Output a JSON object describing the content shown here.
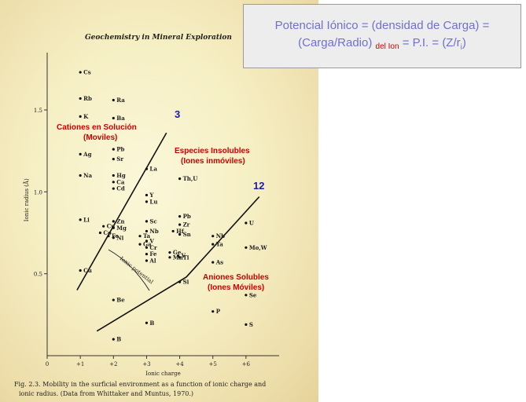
{
  "formula_box": {
    "line1": "Potencial Iónico = (densidad de Carga) =",
    "line2_a": "(Carga/Radio)",
    "line2_sub": "del Ion",
    "line2_b": "= P.I. = (Z/r",
    "line2_isub": "i",
    "line2_c": ")"
  },
  "book_header": "Geochemistry in Mineral Exploration",
  "caption": {
    "line1": "Fig. 2.3. Mobility in the surficial environment as a function of ionic charge and",
    "line2": "ionic radius. (Data from Whittaker and Muntus, 1970.)"
  },
  "annotations": {
    "cations_1": "Cationes en Solución",
    "cations_2": "(Moviles)",
    "insoluble_1": "Especies Insolubles",
    "insoluble_2": "(Iones inmóviles)",
    "anions_1": "Aniones Solubles",
    "anions_2": "(Iones Móviles)",
    "pi_3": "3",
    "pi_12": "12",
    "ionic_potential": "Ionic potential"
  },
  "colors": {
    "red_label": "#cc0000",
    "blue_label": "#1a1aaa",
    "formula_text": "#7070d0"
  },
  "chart_data": {
    "type": "scatter",
    "xlabel": "Ionic charge",
    "ylabel": "Ionic radius (Å)",
    "xlim": [
      0,
      7
    ],
    "ylim": [
      0,
      1.85
    ],
    "x_ticks": [
      "0",
      "+1",
      "+2",
      "+3",
      "+4",
      "+5",
      "+6"
    ],
    "y_ticks": [
      "0.5",
      "1.0",
      "1.5"
    ],
    "y_tick_values": [
      0.5,
      1.0,
      1.5
    ],
    "points": [
      {
        "label": "Cs",
        "x": 1,
        "y": 1.73
      },
      {
        "label": "Rb",
        "x": 1,
        "y": 1.57
      },
      {
        "label": "K",
        "x": 1,
        "y": 1.46
      },
      {
        "label": "Ag",
        "x": 1,
        "y": 1.23
      },
      {
        "label": "Na",
        "x": 1,
        "y": 1.1
      },
      {
        "label": "Li",
        "x": 1,
        "y": 0.83
      },
      {
        "label": "Cu",
        "x": 1,
        "y": 0.52
      },
      {
        "label": "Ra",
        "x": 2,
        "y": 1.56
      },
      {
        "label": "Ba",
        "x": 2,
        "y": 1.45
      },
      {
        "label": "Pb",
        "x": 2,
        "y": 1.26
      },
      {
        "label": "Sr",
        "x": 2,
        "y": 1.2
      },
      {
        "label": "Hg",
        "x": 2,
        "y": 1.1
      },
      {
        "label": "Ca",
        "x": 2,
        "y": 1.06
      },
      {
        "label": "Cd",
        "x": 2,
        "y": 1.02
      },
      {
        "label": "Zn",
        "x": 2,
        "y": 0.82
      },
      {
        "label": "Cu",
        "x": 1.7,
        "y": 0.79
      },
      {
        "label": "Mg",
        "x": 2,
        "y": 0.78
      },
      {
        "label": "Co",
        "x": 1.6,
        "y": 0.75
      },
      {
        "label": "Fe",
        "x": 1.85,
        "y": 0.73
      },
      {
        "label": "Ni",
        "x": 2,
        "y": 0.72
      },
      {
        "label": "Be",
        "x": 2,
        "y": 0.34
      },
      {
        "label": "La",
        "x": 3,
        "y": 1.14
      },
      {
        "label": "Y",
        "x": 3,
        "y": 0.98
      },
      {
        "label": "Lu",
        "x": 3,
        "y": 0.94
      },
      {
        "label": "Sc",
        "x": 3,
        "y": 0.82
      },
      {
        "label": "Nb",
        "x": 3,
        "y": 0.76
      },
      {
        "label": "Ta",
        "x": 2.8,
        "y": 0.73
      },
      {
        "label": "V",
        "x": 3,
        "y": 0.7
      },
      {
        "label": "Ga",
        "x": 2.8,
        "y": 0.68
      },
      {
        "label": "Cr",
        "x": 3,
        "y": 0.66
      },
      {
        "label": "Fe",
        "x": 3,
        "y": 0.62
      },
      {
        "label": "Al",
        "x": 3,
        "y": 0.58
      },
      {
        "label": "B",
        "x": 3,
        "y": 0.2
      },
      {
        "label": "Th,U",
        "x": 4,
        "y": 1.08
      },
      {
        "label": "Pb",
        "x": 4,
        "y": 0.85
      },
      {
        "label": "Zr",
        "x": 4,
        "y": 0.8
      },
      {
        "label": "Hf",
        "x": 3.8,
        "y": 0.76
      },
      {
        "label": "Sn",
        "x": 4,
        "y": 0.74
      },
      {
        "label": "Ge",
        "x": 3.7,
        "y": 0.63
      },
      {
        "label": "Mn",
        "x": 3.7,
        "y": 0.6
      },
      {
        "label": "V",
        "x": 3.95,
        "y": 0.61
      },
      {
        "label": "Ti",
        "x": 4,
        "y": 0.6
      },
      {
        "label": "Si",
        "x": 4,
        "y": 0.45
      },
      {
        "label": "Nb",
        "x": 5,
        "y": 0.73
      },
      {
        "label": "Ta",
        "x": 5,
        "y": 0.68
      },
      {
        "label": "As",
        "x": 5,
        "y": 0.57
      },
      {
        "label": "P",
        "x": 5,
        "y": 0.27
      },
      {
        "label": "U",
        "x": 6,
        "y": 0.81
      },
      {
        "label": "Mo,W",
        "x": 6,
        "y": 0.66
      },
      {
        "label": "Se",
        "x": 6,
        "y": 0.37
      },
      {
        "label": "S",
        "x": 6,
        "y": 0.19
      },
      {
        "label": "B",
        "x": 2,
        "y": 0.1
      }
    ],
    "boundary_lines": [
      {
        "name": "3",
        "x": [
          0.9,
          3.6
        ],
        "y": [
          0.4,
          1.36
        ]
      },
      {
        "name": "12",
        "x": [
          1.5,
          4.2,
          6.4
        ],
        "y": [
          0.15,
          0.48,
          0.97
        ]
      }
    ]
  }
}
